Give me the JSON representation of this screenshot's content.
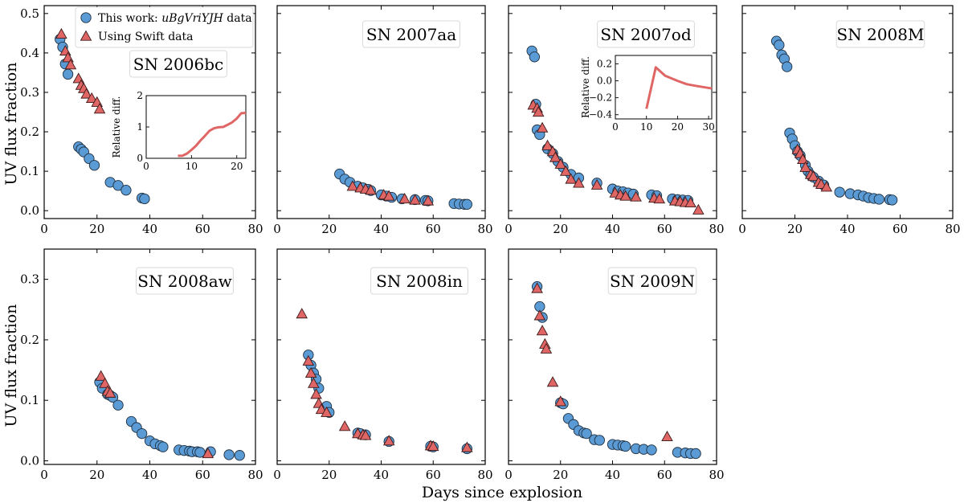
{
  "chart_data": {
    "type": "scatter",
    "shared": {
      "xlabel": "Days since explosion",
      "ylabel": "UV flux fraction",
      "xlim": [
        0,
        80
      ],
      "xticks": [
        0,
        20,
        40,
        60,
        80
      ],
      "series_names": [
        "This work: uBgVriYJH data",
        "Using Swift data"
      ],
      "legend": {
        "prefix": "This work: ",
        "italic": "uBgVriYJH",
        "suffix": " data",
        "swift": "Using Swift data"
      },
      "colors": {
        "this_work": "#5b9bd5",
        "swift": "#e06666",
        "inset_line": "#e06666"
      }
    },
    "panels": [
      {
        "name": "SN 2006bc",
        "ylim": [
          -0.02,
          0.52
        ],
        "yticks": [
          0.0,
          0.1,
          0.2,
          0.3,
          0.4,
          0.5
        ],
        "ytick_labels": [
          "0.0",
          "0.1",
          "0.2",
          "0.3",
          "0.4",
          "0.5"
        ],
        "this_work": [
          [
            6,
            0.435
          ],
          [
            7,
            0.415
          ],
          [
            8,
            0.372
          ],
          [
            9,
            0.346
          ],
          [
            13,
            0.162
          ],
          [
            14,
            0.156
          ],
          [
            15,
            0.149
          ],
          [
            17,
            0.132
          ],
          [
            19,
            0.115
          ],
          [
            25,
            0.072
          ],
          [
            28,
            0.064
          ],
          [
            31,
            0.052
          ],
          [
            37,
            0.032
          ],
          [
            38,
            0.03
          ]
        ],
        "swift": [
          [
            6.5,
            0.448
          ],
          [
            8,
            0.405
          ],
          [
            9,
            0.388
          ],
          [
            10,
            0.37
          ],
          [
            13,
            0.335
          ],
          [
            14,
            0.318
          ],
          [
            15,
            0.31
          ],
          [
            16,
            0.296
          ],
          [
            18,
            0.285
          ],
          [
            20,
            0.275
          ],
          [
            21,
            0.258
          ]
        ],
        "inset": {
          "ylabel": "Relative diff.",
          "xlim": [
            0,
            22
          ],
          "ylim": [
            0,
            2
          ],
          "xticks": [
            0,
            10,
            20
          ],
          "yticks": [
            0,
            1,
            2
          ],
          "ytick_labels": [
            "0",
            "1",
            "2"
          ],
          "line": [
            [
              7,
              0.08
            ],
            [
              8,
              0.08
            ],
            [
              9,
              0.15
            ],
            [
              10,
              0.27
            ],
            [
              11,
              0.4
            ],
            [
              12,
              0.57
            ],
            [
              13,
              0.72
            ],
            [
              14,
              0.88
            ],
            [
              15,
              0.96
            ],
            [
              16,
              0.99
            ],
            [
              17,
              1.0
            ],
            [
              18,
              1.07
            ],
            [
              19,
              1.15
            ],
            [
              20,
              1.27
            ],
            [
              21,
              1.44
            ],
            [
              22,
              1.45
            ]
          ]
        }
      },
      {
        "name": "SN 2007aa",
        "ylim": [
          -0.02,
          0.52
        ],
        "yticks": [
          0.0,
          0.1,
          0.2,
          0.3,
          0.4,
          0.5
        ],
        "ytick_labels": [
          "",
          "",
          "",
          "",
          "",
          ""
        ],
        "this_work": [
          [
            24,
            0.093
          ],
          [
            26,
            0.08
          ],
          [
            28,
            0.072
          ],
          [
            31,
            0.062
          ],
          [
            33,
            0.058
          ],
          [
            35,
            0.054
          ],
          [
            36,
            0.051
          ],
          [
            40,
            0.04
          ],
          [
            42,
            0.037
          ],
          [
            44,
            0.034
          ],
          [
            48,
            0.03
          ],
          [
            53,
            0.028
          ],
          [
            57,
            0.026
          ],
          [
            58,
            0.025
          ],
          [
            68,
            0.018
          ],
          [
            70,
            0.017
          ],
          [
            72,
            0.016
          ],
          [
            73,
            0.016
          ]
        ],
        "swift": [
          [
            29,
            0.062
          ],
          [
            32,
            0.058
          ],
          [
            34,
            0.055
          ],
          [
            36,
            0.052
          ],
          [
            41,
            0.04
          ],
          [
            43,
            0.037
          ],
          [
            49,
            0.03
          ],
          [
            53,
            0.027
          ],
          [
            58,
            0.025
          ]
        ]
      },
      {
        "name": "SN 2007od",
        "ylim": [
          -0.02,
          0.52
        ],
        "yticks": [
          0.0,
          0.1,
          0.2,
          0.3,
          0.4,
          0.5
        ],
        "ytick_labels": [
          "",
          "",
          "",
          "",
          "",
          ""
        ],
        "this_work": [
          [
            9,
            0.405
          ],
          [
            10,
            0.39
          ],
          [
            10.5,
            0.27
          ],
          [
            11,
            0.205
          ],
          [
            12,
            0.193
          ],
          [
            15,
            0.157
          ],
          [
            17,
            0.145
          ],
          [
            19,
            0.125
          ],
          [
            21,
            0.11
          ],
          [
            24,
            0.092
          ],
          [
            27,
            0.083
          ],
          [
            34,
            0.07
          ],
          [
            40,
            0.055
          ],
          [
            42,
            0.05
          ],
          [
            44,
            0.048
          ],
          [
            46,
            0.045
          ],
          [
            48,
            0.042
          ],
          [
            55,
            0.04
          ],
          [
            57,
            0.038
          ],
          [
            63,
            0.03
          ],
          [
            65,
            0.028
          ],
          [
            67,
            0.027
          ],
          [
            69,
            0.026
          ]
        ],
        "swift": [
          [
            9.5,
            0.268
          ],
          [
            11,
            0.26
          ],
          [
            11.5,
            0.25
          ],
          [
            13,
            0.21
          ],
          [
            15,
            0.165
          ],
          [
            17,
            0.15
          ],
          [
            18,
            0.135
          ],
          [
            20,
            0.118
          ],
          [
            22,
            0.1
          ],
          [
            24,
            0.08
          ],
          [
            27,
            0.07
          ],
          [
            34,
            0.065
          ],
          [
            41,
            0.045
          ],
          [
            43,
            0.04
          ],
          [
            45,
            0.037
          ],
          [
            49,
            0.035
          ],
          [
            56,
            0.032
          ],
          [
            58,
            0.03
          ],
          [
            64,
            0.025
          ],
          [
            66,
            0.023
          ],
          [
            68,
            0.021
          ],
          [
            70,
            0.02
          ],
          [
            73,
            0.002
          ]
        ]
      },
      {
        "name": "SN 2008M",
        "ylim": [
          -0.02,
          0.52
        ],
        "yticks": [
          0.0,
          0.1,
          0.2,
          0.3,
          0.4,
          0.5
        ],
        "ytick_labels": [
          "",
          "",
          "",
          "",
          "",
          ""
        ],
        "this_work": [
          [
            13,
            0.43
          ],
          [
            14,
            0.42
          ],
          [
            15,
            0.395
          ],
          [
            16,
            0.385
          ],
          [
            17,
            0.365
          ],
          [
            18,
            0.197
          ],
          [
            19,
            0.182
          ],
          [
            20,
            0.165
          ],
          [
            21,
            0.15
          ],
          [
            22,
            0.14
          ],
          [
            24,
            0.115
          ],
          [
            25,
            0.1
          ],
          [
            26,
            0.09
          ],
          [
            27,
            0.085
          ],
          [
            29,
            0.075
          ],
          [
            31,
            0.065
          ],
          [
            37,
            0.047
          ],
          [
            41,
            0.043
          ],
          [
            44,
            0.04
          ],
          [
            46,
            0.037
          ],
          [
            48,
            0.033
          ],
          [
            50,
            0.031
          ],
          [
            52,
            0.029
          ],
          [
            56,
            0.028
          ],
          [
            57,
            0.027
          ]
        ],
        "swift": [
          [
            21,
            0.155
          ],
          [
            22,
            0.145
          ],
          [
            23,
            0.13
          ],
          [
            24,
            0.11
          ],
          [
            26,
            0.092
          ],
          [
            27,
            0.087
          ],
          [
            29,
            0.072
          ],
          [
            30,
            0.067
          ],
          [
            32,
            0.06
          ]
        ]
      },
      {
        "name": "SN 2008aw",
        "ylim": [
          -0.006,
          0.35
        ],
        "yticks": [
          0.0,
          0.1,
          0.2,
          0.3
        ],
        "ytick_labels": [
          "0.0",
          "0.1",
          "0.2",
          "0.3"
        ],
        "this_work": [
          [
            21,
            0.13
          ],
          [
            22,
            0.12
          ],
          [
            24,
            0.11
          ],
          [
            25,
            0.108
          ],
          [
            26,
            0.105
          ],
          [
            28,
            0.092
          ],
          [
            33,
            0.065
          ],
          [
            35,
            0.055
          ],
          [
            37,
            0.045
          ],
          [
            40,
            0.033
          ],
          [
            42,
            0.028
          ],
          [
            44,
            0.025
          ],
          [
            45,
            0.023
          ],
          [
            51,
            0.018
          ],
          [
            53,
            0.017
          ],
          [
            55,
            0.016
          ],
          [
            56,
            0.015
          ],
          [
            58,
            0.015
          ],
          [
            59,
            0.014
          ],
          [
            63,
            0.015
          ],
          [
            70,
            0.01
          ],
          [
            74,
            0.009
          ]
        ],
        "swift": [
          [
            21.5,
            0.14
          ],
          [
            23,
            0.128
          ],
          [
            24,
            0.115
          ],
          [
            25,
            0.112
          ],
          [
            62,
            0.012
          ]
        ]
      },
      {
        "name": "SN 2008in",
        "ylim": [
          -0.006,
          0.35
        ],
        "yticks": [
          0.0,
          0.1,
          0.2,
          0.3
        ],
        "ytick_labels": [
          "",
          "",
          "",
          ""
        ],
        "this_work": [
          [
            12,
            0.175
          ],
          [
            13,
            0.158
          ],
          [
            14,
            0.145
          ],
          [
            15,
            0.135
          ],
          [
            16,
            0.12
          ],
          [
            19,
            0.09
          ],
          [
            20,
            0.08
          ],
          [
            31,
            0.046
          ],
          [
            32,
            0.045
          ],
          [
            34,
            0.043
          ],
          [
            43,
            0.032
          ],
          [
            59,
            0.024
          ],
          [
            60,
            0.023
          ],
          [
            73,
            0.02
          ]
        ],
        "swift": [
          [
            9.5,
            0.243
          ],
          [
            12,
            0.165
          ],
          [
            13,
            0.145
          ],
          [
            14,
            0.128
          ],
          [
            15,
            0.11
          ],
          [
            16,
            0.095
          ],
          [
            17,
            0.085
          ],
          [
            19,
            0.08
          ],
          [
            26,
            0.057
          ],
          [
            31,
            0.045
          ],
          [
            33,
            0.043
          ],
          [
            34,
            0.042
          ],
          [
            43,
            0.033
          ],
          [
            59,
            0.025
          ],
          [
            60,
            0.024
          ],
          [
            73,
            0.022
          ]
        ]
      },
      {
        "name": "SN 2009N",
        "ylim": [
          -0.006,
          0.35
        ],
        "yticks": [
          0.0,
          0.1,
          0.2,
          0.3
        ],
        "ytick_labels": [
          "",
          "",
          "",
          ""
        ],
        "this_work": [
          [
            11,
            0.288
          ],
          [
            12,
            0.255
          ],
          [
            13,
            0.237
          ],
          [
            20,
            0.096
          ],
          [
            21,
            0.094
          ],
          [
            23,
            0.07
          ],
          [
            25,
            0.06
          ],
          [
            27,
            0.05
          ],
          [
            29,
            0.046
          ],
          [
            30,
            0.045
          ],
          [
            33,
            0.035
          ],
          [
            35,
            0.034
          ],
          [
            40,
            0.027
          ],
          [
            42,
            0.026
          ],
          [
            44,
            0.025
          ],
          [
            45,
            0.024
          ],
          [
            49,
            0.02
          ],
          [
            52,
            0.019
          ],
          [
            55,
            0.018
          ],
          [
            65,
            0.014
          ],
          [
            68,
            0.013
          ],
          [
            70,
            0.012
          ],
          [
            72,
            0.012
          ]
        ],
        "swift": [
          [
            11,
            0.285
          ],
          [
            12,
            0.24
          ],
          [
            13,
            0.215
          ],
          [
            14,
            0.193
          ],
          [
            14.5,
            0.185
          ],
          [
            17,
            0.13
          ],
          [
            20,
            0.098
          ],
          [
            61,
            0.04
          ]
        ]
      }
    ],
    "inset_2007od": {
      "ylabel": "Relative diff.",
      "xlim": [
        0,
        31
      ],
      "ylim": [
        -0.45,
        0.3
      ],
      "xticks": [
        0,
        10,
        20,
        30
      ],
      "yticks": [
        -0.4,
        -0.2,
        0.0,
        0.2
      ],
      "ytick_labels": [
        "−0.4",
        "−0.2",
        "0.0",
        "0.2"
      ],
      "line": [
        [
          10,
          -0.33
        ],
        [
          13,
          0.16
        ],
        [
          16,
          0.06
        ],
        [
          20,
          0.0
        ],
        [
          23,
          -0.04
        ],
        [
          26,
          -0.06
        ],
        [
          31,
          -0.09
        ]
      ]
    }
  }
}
